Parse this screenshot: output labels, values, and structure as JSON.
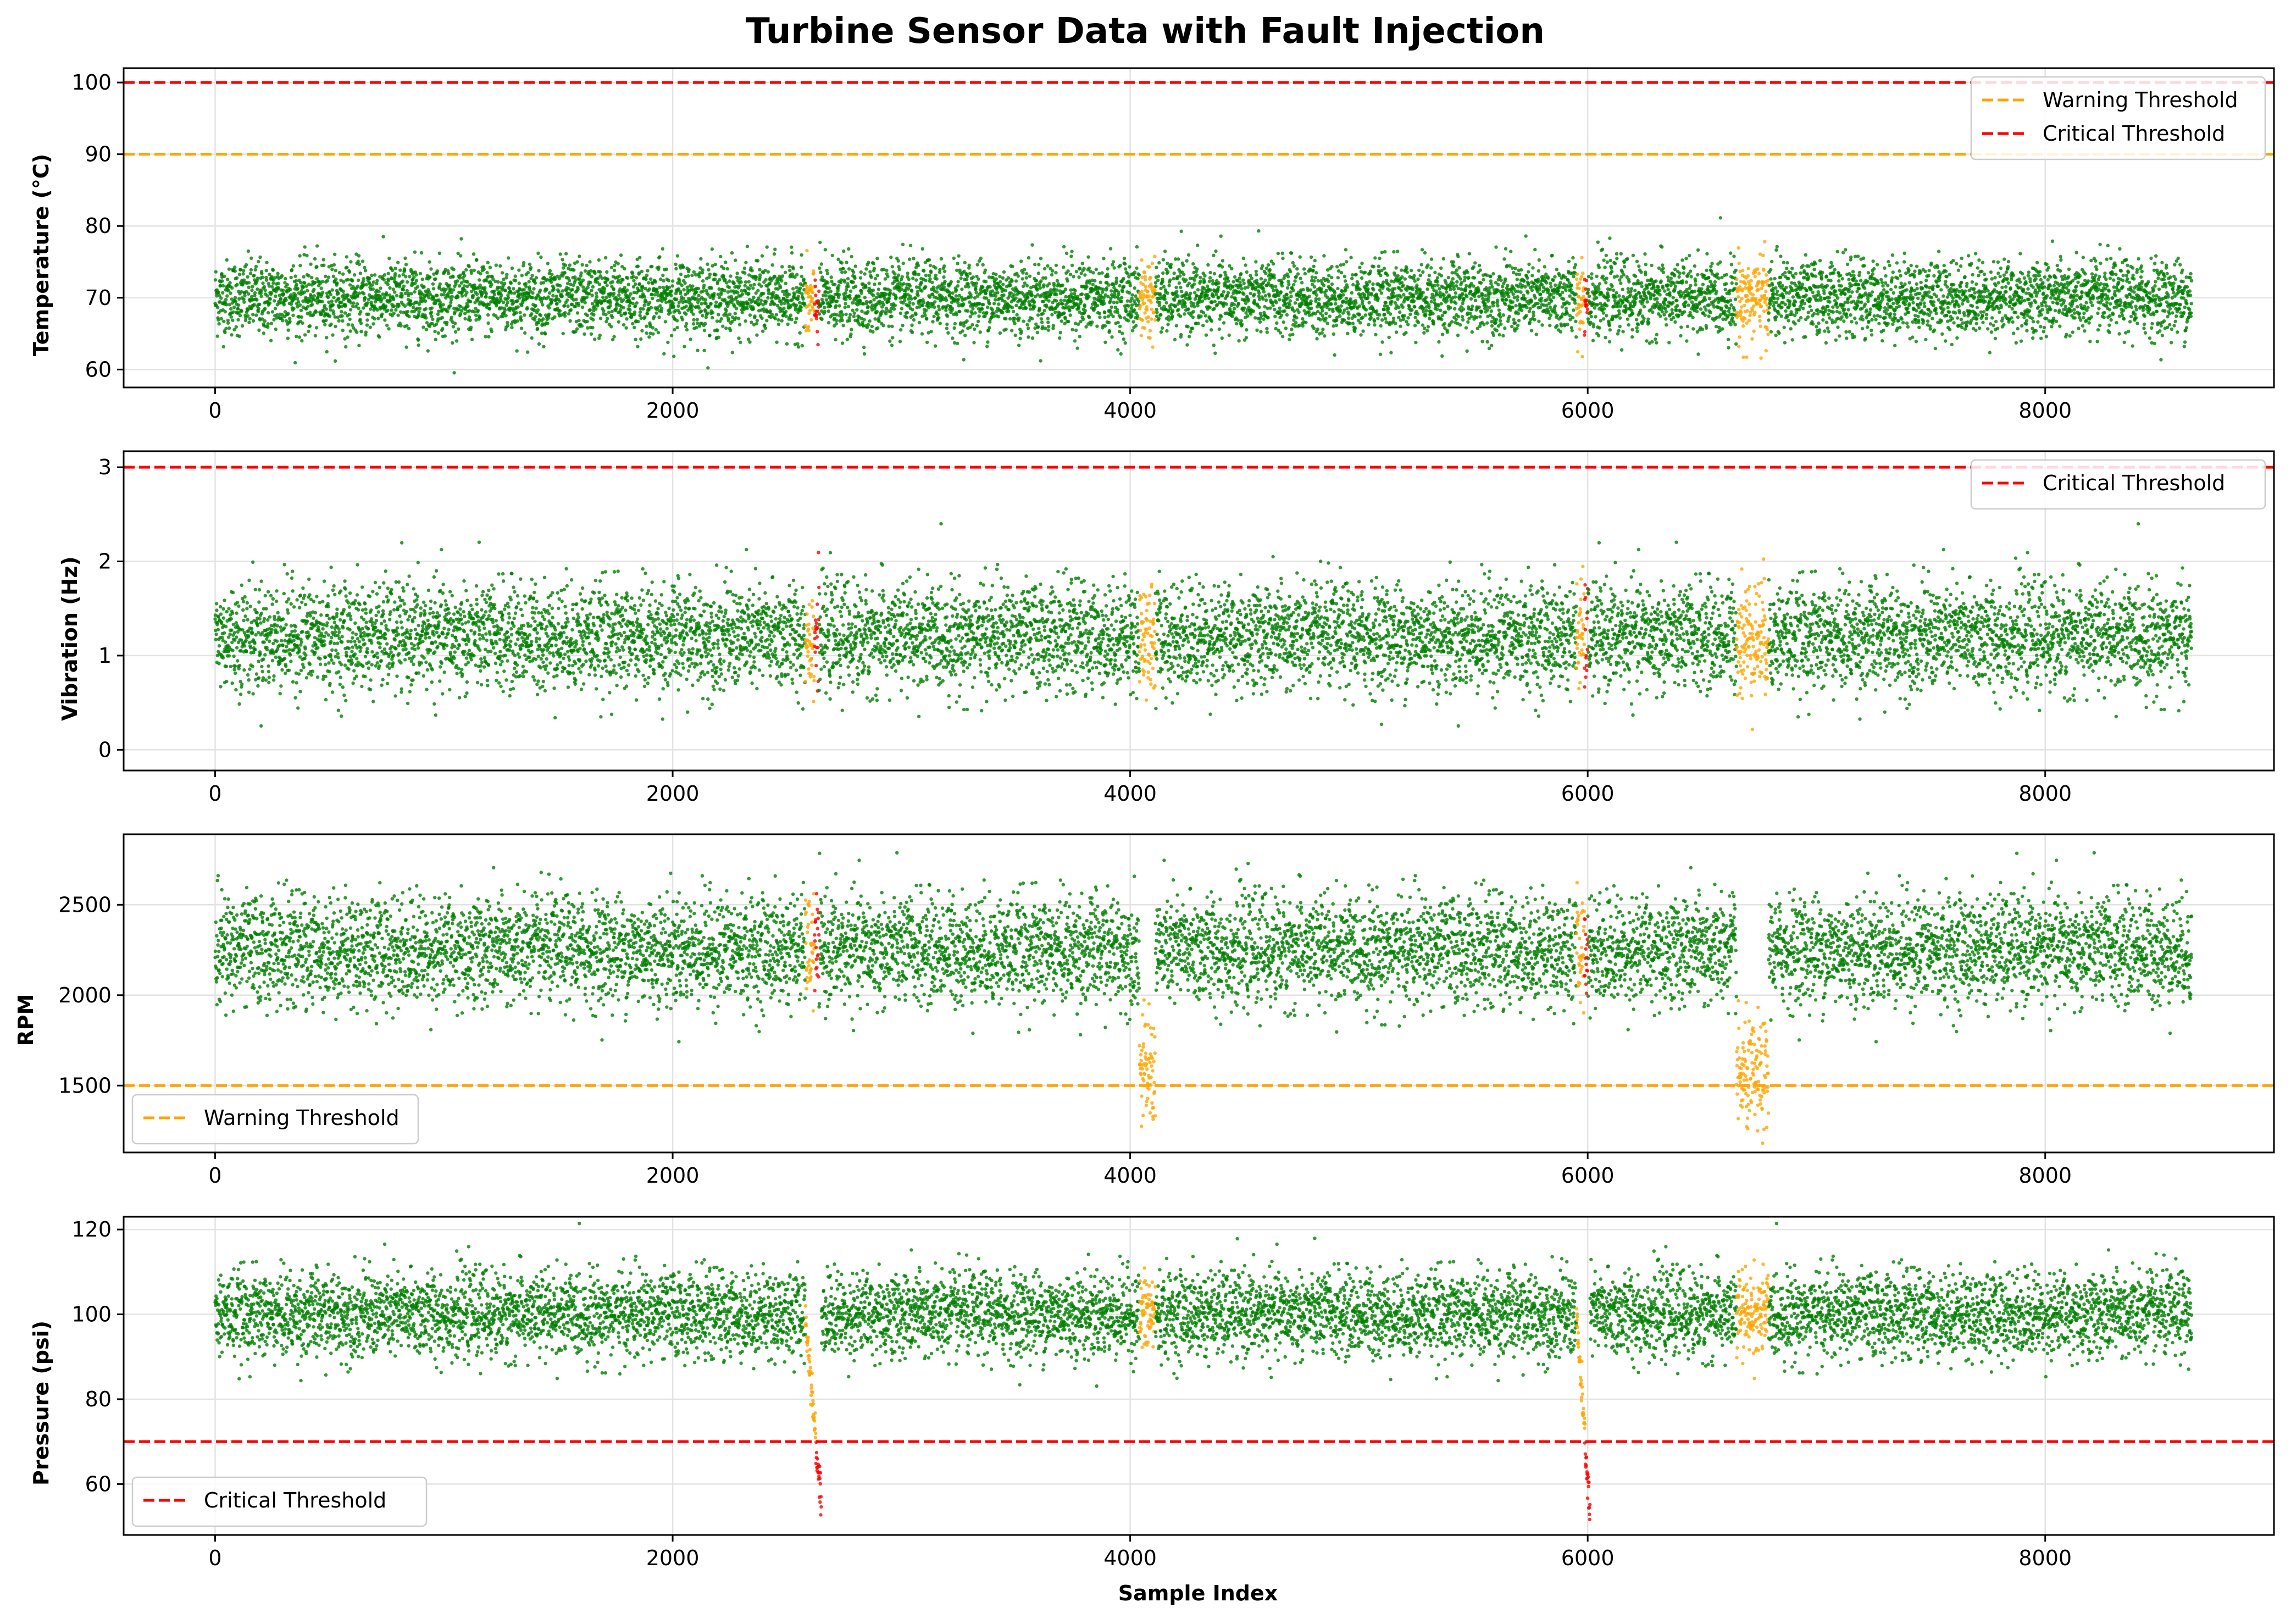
{
  "figure": {
    "title": "Turbine Sensor Data with Fault Injection",
    "xlabel": "Sample Index"
  },
  "chart_data": [
    {
      "type": "scatter",
      "ylabel": "Temperature (°C)",
      "xlim": [
        -400,
        9000
      ],
      "ylim": [
        57.5,
        102
      ],
      "xticks": [
        0,
        2000,
        4000,
        6000,
        8000
      ],
      "yticks": [
        60,
        70,
        80,
        90,
        100
      ],
      "grid": true,
      "legend": "top-right",
      "thresholds": [
        {
          "name": "Warning Threshold",
          "value": 90,
          "color": "#ffa500"
        },
        {
          "name": "Critical Threshold",
          "value": 100,
          "color": "#ff0000"
        }
      ],
      "normal": {
        "x_range": [
          0,
          8640
        ],
        "center": 70,
        "spread": 2.6
      },
      "fault_windows": [
        {
          "x": [
            2580,
            2640
          ],
          "center": 69,
          "spread": 2.6,
          "color": "#ffa500",
          "red_tail": [
            2620,
            2640
          ]
        },
        {
          "x": [
            4040,
            4110
          ],
          "center": 70,
          "spread": 2.8,
          "color": "#ffa500"
        },
        {
          "x": [
            5950,
            6000
          ],
          "center": 70,
          "spread": 3,
          "color": "#ffa500",
          "red_tail": [
            5985,
            6000
          ]
        },
        {
          "x": [
            6650,
            6790
          ],
          "center": 70,
          "spread": 3,
          "color": "#ffa500"
        }
      ],
      "points": {
        "count": 8640,
        "colors": {
          "normal": "#008000",
          "warning": "#ffa500",
          "critical": "#ff0000"
        }
      }
    },
    {
      "type": "scatter",
      "ylabel": "Vibration (Hz)",
      "xlim": [
        -400,
        9000
      ],
      "ylim": [
        -0.22,
        3.17
      ],
      "xticks": [
        0,
        2000,
        4000,
        6000,
        8000
      ],
      "yticks": [
        0,
        1,
        2,
        3
      ],
      "grid": true,
      "legend": "top-right",
      "thresholds": [
        {
          "name": "Critical Threshold",
          "value": 3,
          "color": "#ff0000"
        }
      ],
      "normal": {
        "x_range": [
          0,
          8640
        ],
        "center": 1.2,
        "spread": 0.28
      },
      "fault_windows": [
        {
          "x": [
            2580,
            2640
          ],
          "center": 1.2,
          "spread": 0.3,
          "color": "#ffa500",
          "red_tail": [
            2620,
            2640
          ]
        },
        {
          "x": [
            4040,
            4110
          ],
          "center": 1.2,
          "spread": 0.3,
          "color": "#ffa500"
        },
        {
          "x": [
            5950,
            6000
          ],
          "center": 1.2,
          "spread": 0.3,
          "color": "#ffa500",
          "red_tail": [
            5985,
            6000
          ]
        },
        {
          "x": [
            6650,
            6790
          ],
          "center": 1.2,
          "spread": 0.32,
          "color": "#ffa500"
        }
      ],
      "points": {
        "count": 8640,
        "colors": {
          "normal": "#008000",
          "warning": "#ffa500",
          "critical": "#ff0000"
        }
      }
    },
    {
      "type": "scatter",
      "ylabel": "RPM",
      "xlim": [
        -400,
        9000
      ],
      "ylim": [
        1130,
        2890
      ],
      "xticks": [
        0,
        2000,
        4000,
        6000,
        8000
      ],
      "yticks": [
        1500,
        2000,
        2500
      ],
      "grid": true,
      "legend": "bottom-left",
      "thresholds": [
        {
          "name": "Warning Threshold",
          "value": 1500,
          "color": "#ffa500"
        }
      ],
      "normal": {
        "x_range": [
          0,
          8640
        ],
        "center": 2250,
        "spread": 150
      },
      "fault_windows": [
        {
          "x": [
            2580,
            2640
          ],
          "center": 2250,
          "spread": 150,
          "color": "#ffa500",
          "red_tail": [
            2620,
            2640
          ]
        },
        {
          "x": [
            4040,
            4110
          ],
          "center": 1580,
          "spread": 150,
          "color": "#ffa500"
        },
        {
          "x": [
            5950,
            6000
          ],
          "center": 2250,
          "spread": 150,
          "color": "#ffa500",
          "red_tail": [
            5985,
            6000
          ]
        },
        {
          "x": [
            6650,
            6790
          ],
          "center": 1540,
          "spread": 150,
          "color": "#ffa500"
        }
      ],
      "points": {
        "count": 8640,
        "colors": {
          "normal": "#008000",
          "warning": "#ffa500",
          "critical": "#ff0000"
        }
      }
    },
    {
      "type": "scatter",
      "ylabel": "Pressure (psi)",
      "xlim": [
        -400,
        9000
      ],
      "ylim": [
        48,
        123
      ],
      "xticks": [
        0,
        2000,
        4000,
        6000,
        8000
      ],
      "yticks": [
        60,
        80,
        100,
        120
      ],
      "grid": true,
      "legend": "bottom-left",
      "thresholds": [
        {
          "name": "Critical Threshold",
          "value": 70,
          "color": "#ff0000"
        }
      ],
      "normal": {
        "x_range": [
          0,
          8640
        ],
        "center": 100,
        "spread": 5
      },
      "fault_windows": [
        {
          "x": [
            2580,
            2650
          ],
          "decline": [
            100,
            55
          ],
          "color": "#ffa500",
          "critical_below": 70
        },
        {
          "x": [
            4040,
            4110
          ],
          "center": 100,
          "spread": 5,
          "color": "#ffa500"
        },
        {
          "x": [
            5950,
            6010
          ],
          "decline": [
            100,
            53
          ],
          "color": "#ffa500",
          "critical_below": 70
        },
        {
          "x": [
            6650,
            6790
          ],
          "center": 100,
          "spread": 5,
          "color": "#ffa500"
        }
      ],
      "points": {
        "count": 8640,
        "colors": {
          "normal": "#008000",
          "warning": "#ffa500",
          "critical": "#ff0000"
        }
      }
    }
  ]
}
